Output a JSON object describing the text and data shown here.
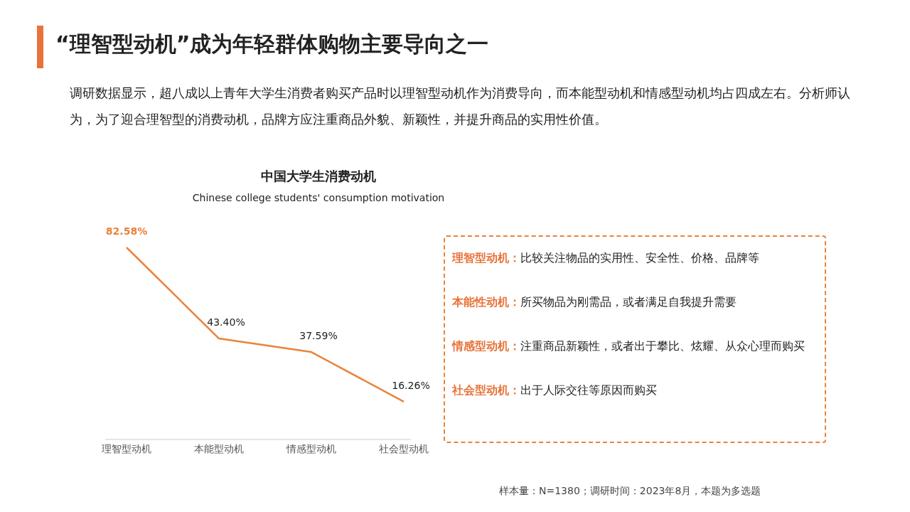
{
  "chart_data": {
    "type": "line",
    "title": "中国大学生消费动机",
    "subtitle": "Chinese college students' consumption motivation",
    "categories": [
      "理智型动机",
      "本能型动机",
      "情感型动机",
      "社会型动机"
    ],
    "series": [
      {
        "color": "#e8833a",
        "values": [
          82.58,
          43.4,
          37.59,
          16.26
        ],
        "value_labels": [
          "82.58%",
          "43.40%",
          "37.59%",
          "16.26%"
        ]
      }
    ],
    "tick_labels": "x",
    "grid": false,
    "marker": "none",
    "annotations": [
      "“理智型动机”成为年轻群体购物主要导向之一",
      "调研数据显示，超八成以上青年大学生消费者购买产品时以理智型动机作为消费导向，而本能型动机和情感型动机均占四成左右。分析师认为，为了迎合理智型的消费动机，品牌方应注重商品外貌、新颖性，并提升商品的实用性价值。",
      "理智型动机：比较关注物品的实用性、安全性、价格、品牌等",
      "本能性动机：所买物品为刚需品，或者满足自我提升需要",
      "情感型动机：注重商品新颖性，或者出于攀比、炫耀、从众心理而购买",
      "社会型动机：出于人际交往等原因而购买",
      "样本量：N=1380；调研时间：2023年8月，本题为多选题"
    ]
  }
}
